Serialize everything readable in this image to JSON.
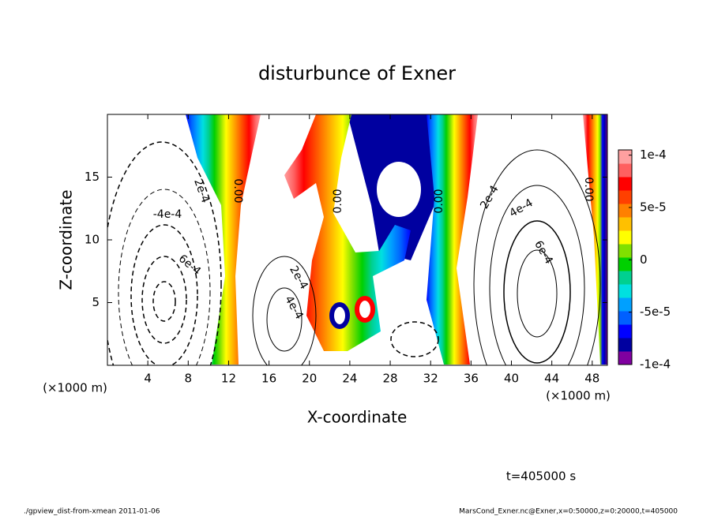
{
  "chart_data": {
    "type": "contour",
    "title": "disturbunce of Exner",
    "xlabel": "X-coordinate",
    "ylabel": "Z-coordinate",
    "x_unit_label": "(×1000 m)",
    "xlim": [
      0,
      49.5
    ],
    "xticks": [
      4,
      8,
      12,
      16,
      20,
      24,
      28,
      32,
      36,
      40,
      44,
      48
    ],
    "ylim": [
      0,
      20
    ],
    "yticks": [
      5,
      10,
      15
    ],
    "colorbar": {
      "lim": [
        -0.0001,
        0.000105
      ],
      "ticks": [
        {
          "value": 0.0001,
          "label": "1e-4"
        },
        {
          "value": 5e-05,
          "label": "5e-5"
        },
        0,
        {
          "value": -5e-05,
          "label": "-5e-5"
        },
        {
          "value": -0.0001,
          "label": "-1e-4"
        }
      ],
      "colors": [
        "#8000a0",
        "#0000a0",
        "#0000ff",
        "#0060ff",
        "#00a0ff",
        "#00e0e0",
        "#00d090",
        "#00d000",
        "#80e000",
        "#ffff00",
        "#ffc000",
        "#ff8000",
        "#ff4000",
        "#ff0000",
        "#ff6060",
        "#ffa0a0"
      ]
    },
    "contour_labels": [
      "2e-4",
      "0.00",
      "-4e-4",
      "6e-4",
      "2e-4",
      "4e-4",
      "0.00",
      "0.00",
      "2e-4",
      "4e-4",
      "6e-4",
      "0.00"
    ],
    "annotation": "t=405000 s",
    "footer_left": "./gpview_dist-from-xmean  2011-01-06",
    "footer_right": "MarsCond_Exner.nc@Exner,x=0:50000,z=0:20000,t=405000"
  }
}
